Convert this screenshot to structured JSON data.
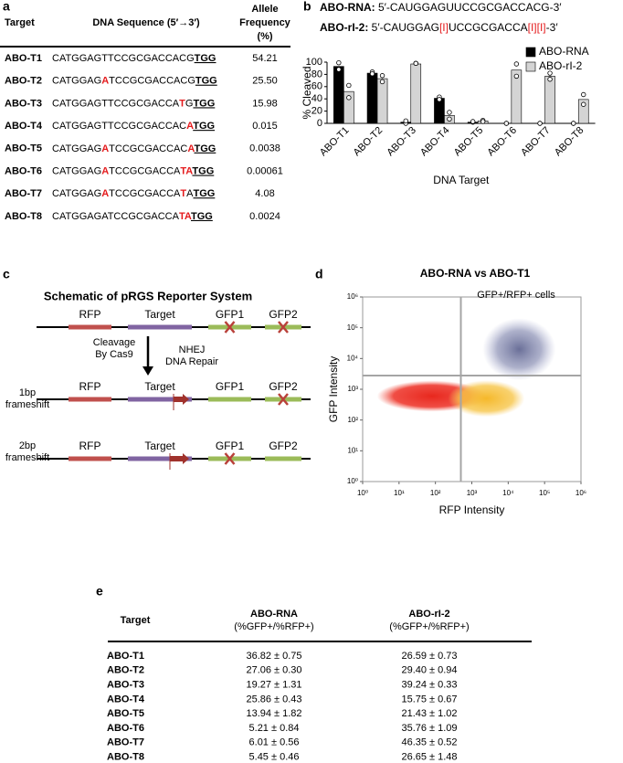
{
  "panel_labels": [
    "a",
    "b",
    "c",
    "d",
    "e"
  ],
  "allele_table": {
    "headers": [
      [
        "Target"
      ],
      [
        "DNA Sequence (5′→3′)"
      ],
      [
        "Allele",
        "Frequency",
        "(%)"
      ]
    ],
    "rows": [
      {
        "target": "ABO-T1",
        "sequence": [
          {
            "text": "CATGGAGTTCCGCGACCACG"
          },
          {
            "text": "TGG",
            "bold": true,
            "underline": true
          }
        ],
        "frequency": "54.21"
      },
      {
        "target": "ABO-T2",
        "sequence": [
          {
            "text": "CATGGAG"
          },
          {
            "text": "A",
            "color": "#e41a1c",
            "bold": true
          },
          {
            "text": "TCCGCGACCACG"
          },
          {
            "text": "TGG",
            "bold": true,
            "underline": true
          }
        ],
        "frequency": "25.50"
      },
      {
        "target": "ABO-T3",
        "sequence": [
          {
            "text": "CATGGAGTTCCGCGACCA"
          },
          {
            "text": "T",
            "color": "#e41a1c",
            "bold": true
          },
          {
            "text": "G"
          },
          {
            "text": "TGG",
            "bold": true,
            "underline": true
          }
        ],
        "frequency": "15.98"
      },
      {
        "target": "ABO-T4",
        "sequence": [
          {
            "text": "CATGGAGTTCCGCGACCAC"
          },
          {
            "text": "A",
            "color": "#e41a1c",
            "bold": true
          },
          {
            "text": "TGG",
            "bold": true,
            "underline": true
          }
        ],
        "frequency": "0.015"
      },
      {
        "target": "ABO-T5",
        "sequence": [
          {
            "text": "CATGGAG"
          },
          {
            "text": "A",
            "color": "#e41a1c",
            "bold": true
          },
          {
            "text": "TCCGCGACCAC"
          },
          {
            "text": "A",
            "color": "#e41a1c",
            "bold": true
          },
          {
            "text": "TGG",
            "bold": true,
            "underline": true
          }
        ],
        "frequency": "0.0038"
      },
      {
        "target": "ABO-T6",
        "sequence": [
          {
            "text": "CATGGAG"
          },
          {
            "text": "A",
            "color": "#e41a1c",
            "bold": true
          },
          {
            "text": "TCCGCGACCA"
          },
          {
            "text": "TA",
            "color": "#e41a1c",
            "bold": true
          },
          {
            "text": "TGG",
            "bold": true,
            "underline": true
          }
        ],
        "frequency": "0.00061"
      },
      {
        "target": "ABO-T7",
        "sequence": [
          {
            "text": "CATGGAG"
          },
          {
            "text": "A",
            "color": "#e41a1c",
            "bold": true
          },
          {
            "text": "TCCGCGACCA"
          },
          {
            "text": "T",
            "color": "#e41a1c",
            "bold": true
          },
          {
            "text": "A"
          },
          {
            "text": "TGG",
            "bold": true,
            "underline": true
          }
        ],
        "frequency": "4.08"
      },
      {
        "target": "ABO-T8",
        "sequence": [
          {
            "text": "CATGGAGATCCGCGACCA"
          },
          {
            "text": "TA",
            "color": "#e41a1c",
            "bold": true
          },
          {
            "text": "TGG",
            "bold": true,
            "underline": true
          }
        ],
        "frequency": "0.0024"
      }
    ]
  },
  "guides": [
    [
      {
        "text": "ABO-RNA:",
        "bold": true
      },
      {
        "text": " 5′-CAUGGAGUUCCGCGACCACG-3′"
      }
    ],
    [
      {
        "text": "ABO-rI-2:",
        "bold": true
      },
      {
        "text": " 5′-CAUGGAG"
      },
      {
        "text": "[I]",
        "color": "#e41a1c"
      },
      {
        "text": "UCCGCGACCA"
      },
      {
        "text": "[I][I]",
        "color": "#e41a1c"
      },
      {
        "text": "-3′"
      }
    ]
  ],
  "chart_data": [
    {
      "type": "bar",
      "ylabel": "% Cleaved",
      "xlabel": "DNA Target",
      "categories": [
        "ABO-T1",
        "ABO-T2",
        "ABO-T3",
        "ABO-T4",
        "ABO-T5",
        "ABO-T6",
        "ABO-T7",
        "ABO-T8"
      ],
      "series": [
        {
          "name": "ABO-RNA",
          "color": "#000000",
          "values": [
            93,
            82,
            2,
            41,
            2,
            0,
            0,
            0
          ],
          "replicates": [
            [
              99,
              88
            ],
            [
              84,
              81
            ],
            [
              0,
              4
            ],
            [
              43,
              39
            ],
            [
              2,
              3
            ],
            [
              0,
              0
            ],
            [
              0,
              0
            ],
            [
              0,
              0
            ]
          ]
        },
        {
          "name": "ABO-rI-2",
          "color": "#d4d4d4",
          "values": [
            52,
            73,
            97,
            13,
            4,
            87,
            77,
            39
          ],
          "replicates": [
            [
              62,
              42
            ],
            [
              78,
              68
            ],
            [
              98,
              98
            ],
            [
              18,
              7
            ],
            [
              5,
              3
            ],
            [
              97,
              77
            ],
            [
              82,
              72
            ],
            [
              47,
              31
            ]
          ]
        }
      ],
      "ylim": [
        0,
        100
      ],
      "yticks": [
        0,
        20,
        40,
        60,
        80,
        100
      ],
      "grid": false,
      "legend": "top-right"
    },
    {
      "type": "scatter",
      "title": "ABO-RNA vs ABO-T1",
      "annotation": "GFP+/RFP+ cells",
      "xlabel": "RFP Intensity",
      "ylabel": "GFP Intensity",
      "log_scale": true,
      "xlim": [
        1,
        1000000
      ],
      "ylim": [
        1,
        1000000
      ],
      "xticks": [
        {
          "value": 1,
          "label": "10⁰"
        },
        {
          "value": 10,
          "label": "10¹"
        },
        {
          "value": 100,
          "label": "10²"
        },
        {
          "value": 1000,
          "label": "10³"
        },
        {
          "value": 10000,
          "label": "10⁴"
        },
        {
          "value": 100000,
          "label": "10⁵"
        },
        {
          "value": 1000000,
          "label": "10⁶"
        }
      ],
      "yticks": [
        {
          "value": 1,
          "label": "10⁰"
        },
        {
          "value": 10,
          "label": "10¹"
        },
        {
          "value": 100,
          "label": "10²"
        },
        {
          "value": 1000,
          "label": "10³"
        },
        {
          "value": 10000,
          "label": "10⁴"
        },
        {
          "value": 100000,
          "label": "10⁵"
        },
        {
          "value": 1000000,
          "label": "10⁶"
        }
      ],
      "gates": {
        "x": 500,
        "y": 2800
      }
    }
  ],
  "schematic": {
    "title": "Schematic of pRGS Reporter System",
    "elements": [
      "RFP",
      "Target",
      "GFP1",
      "GFP2"
    ],
    "step_left": [
      "Cleavage",
      "By Cas9"
    ],
    "step_right": [
      "NHEJ",
      "DNA Repair"
    ],
    "rows": [
      {
        "label": [
          "1bp",
          "frameshift"
        ]
      },
      {
        "label": [
          "2bp",
          "frameshift"
        ]
      }
    ]
  },
  "result_table": {
    "headers": [
      [
        "Target"
      ],
      [
        "ABO-RNA",
        "(%GFP+/%RFP+)"
      ],
      [
        "ABO-rI-2",
        "(%GFP+/%RFP+)"
      ]
    ],
    "rows": [
      [
        "ABO-T1",
        "36.82 ± 0.75",
        "26.59 ± 0.73"
      ],
      [
        "ABO-T2",
        "27.06 ± 0.30",
        "29.40 ± 0.94"
      ],
      [
        "ABO-T3",
        "19.27 ± 1.31",
        "39.24 ± 0.33"
      ],
      [
        "ABO-T4",
        "25.86 ± 0.43",
        "15.75 ± 0.67"
      ],
      [
        "ABO-T5",
        "13.94 ± 1.82",
        "21.43 ± 1.02"
      ],
      [
        "ABO-T6",
        "5.21 ± 0.84",
        "35.76 ± 1.09"
      ],
      [
        "ABO-T7",
        "6.01 ± 0.56",
        "46.35 ± 0.52"
      ],
      [
        "ABO-T8",
        "5.45 ± 0.46",
        "26.65 ± 1.48"
      ]
    ]
  }
}
